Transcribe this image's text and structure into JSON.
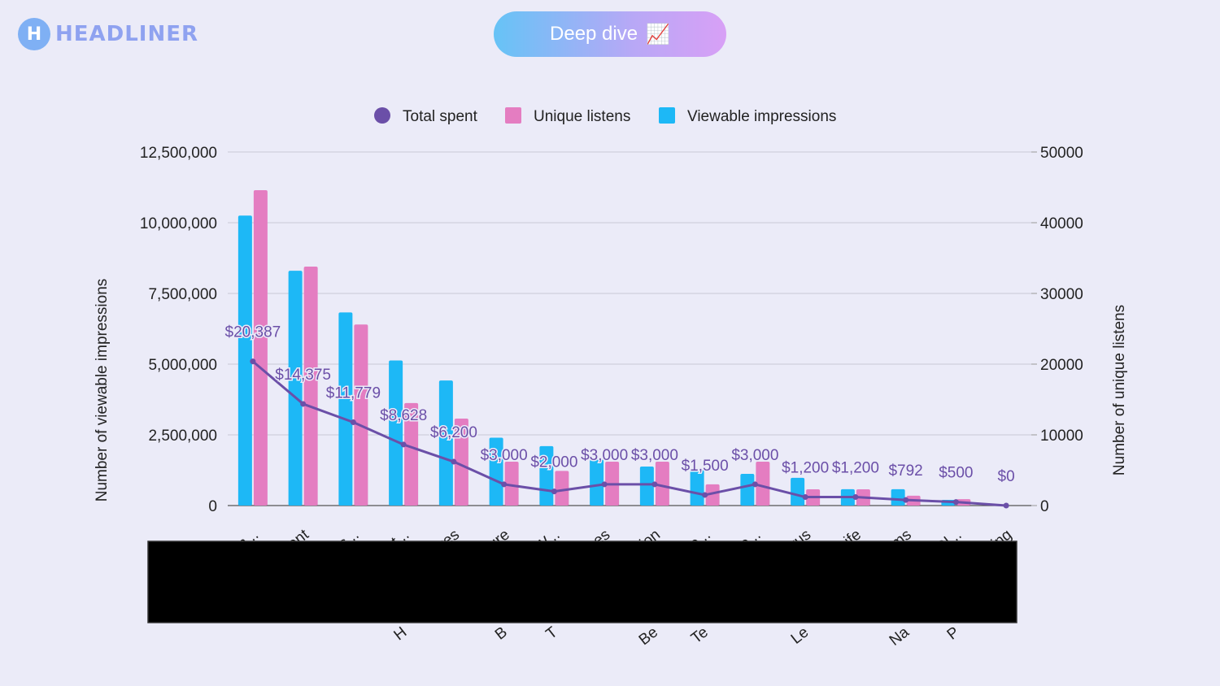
{
  "brand": {
    "logo_letter": "H",
    "name": "HEADLINER"
  },
  "header": {
    "pill_label": "Deep dive",
    "pill_icon": "📈"
  },
  "colors": {
    "line": "#6b4fa8",
    "listens": "#e47dc1",
    "impressions": "#1db8f6",
    "label": "#6b4fa8"
  },
  "chart_data": {
    "type": "bar",
    "legend_position": "top",
    "grid": true,
    "categories": [
      "m...",
      "nent",
      "his...",
      "st...",
      "kes",
      "ture",
      "W...",
      "nces",
      "ition",
      "re...",
      "De...",
      "orus",
      "Life",
      "oms",
      "Gl...",
      "ting"
    ],
    "series": [
      {
        "name": "Viewable impressions",
        "kind": "bar",
        "axis": "left",
        "values": [
          10250000,
          8300000,
          6830000,
          5130000,
          4420000,
          2400000,
          2100000,
          1620000,
          1380000,
          1250000,
          1120000,
          980000,
          580000,
          580000,
          200000,
          0
        ]
      },
      {
        "name": "Unique listens",
        "kind": "bar",
        "axis": "right",
        "values": [
          44600,
          33800,
          25600,
          14500,
          12300,
          6200,
          4900,
          6200,
          6200,
          3000,
          6200,
          2300,
          2300,
          1400,
          900,
          0
        ]
      },
      {
        "name": "Total spent",
        "kind": "line",
        "axis": "right",
        "values": [
          20387,
          14375,
          11779,
          8628,
          6200,
          3000,
          2000,
          3000,
          3000,
          1500,
          3000,
          1200,
          1200,
          792,
          500,
          0
        ],
        "labels": [
          "$20,387",
          "$14,375",
          "$11,779",
          "$8,628",
          "$6,200",
          "$3,000",
          "$2,000",
          "$3,000",
          "$3,000",
          "$1,500",
          "$3,000",
          "$1,200",
          "$1,200",
          "$792",
          "$500",
          "$0"
        ]
      }
    ],
    "legend_order": [
      "Total spent",
      "Unique listens",
      "Viewable impressions"
    ],
    "ylabel": "Number of viewable impressions",
    "y2label": "Number of unique listens",
    "ylim": [
      0,
      12500000
    ],
    "y2lim": [
      0,
      50000
    ],
    "yticks": [
      "0",
      "2,500,000",
      "5,000,000",
      "7,500,000",
      "10,000,000",
      "12,500,000"
    ],
    "y2ticks": [
      "0",
      "10000",
      "20000",
      "30000",
      "40000",
      "50000"
    ],
    "hidden_label_fragments": [
      "H",
      "B",
      "T",
      "Be",
      "Te",
      "Le",
      "Na",
      "P"
    ]
  }
}
